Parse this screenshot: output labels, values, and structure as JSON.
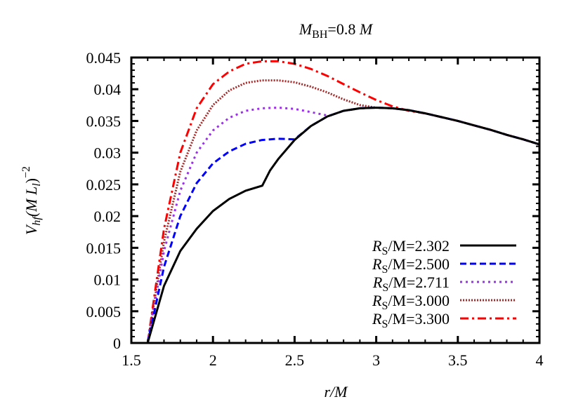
{
  "chart_data": {
    "type": "line",
    "title": "M_BH=0.8 M",
    "title_parts": {
      "main": "M",
      "sub": "BH",
      "rest": "=0.8 ",
      "unit": "M"
    },
    "xlabel": "r/M",
    "ylabel": "V_hf (M L_l)^-2",
    "ylabel_parts": {
      "v": "V",
      "vsub": "hf",
      "mid": "(M L",
      "lsub": "l",
      "close": ")",
      "sup": "−2"
    },
    "xlim": [
      1.5,
      4
    ],
    "ylim": [
      0,
      0.045
    ],
    "xticks": [
      "1.5",
      "2",
      "2.5",
      "3",
      "3.5",
      "4"
    ],
    "yticks": [
      "0",
      "0.005",
      "0.01",
      "0.015",
      "0.02",
      "0.025",
      "0.03",
      "0.035",
      "0.04",
      "0.045"
    ],
    "grid": false,
    "legend_position": "bottom-right",
    "series": [
      {
        "name": "R_S/M=2.302",
        "label_main": "R",
        "label_sub": "S",
        "label_rest": "/M=2.302",
        "color": "#000000",
        "style": "solid",
        "x": [
          1.6,
          1.7,
          1.8,
          1.9,
          2.0,
          2.1,
          2.2,
          2.302,
          2.35,
          2.4,
          2.5,
          2.6,
          2.7,
          2.8,
          2.9,
          3.0,
          3.1,
          3.2,
          3.3,
          3.4,
          3.5,
          3.6,
          3.7,
          3.8,
          3.9,
          4.0
        ],
        "y": [
          0,
          0.009,
          0.0145,
          0.018,
          0.0208,
          0.0227,
          0.024,
          0.0248,
          0.0272,
          0.029,
          0.032,
          0.0342,
          0.0357,
          0.0366,
          0.037,
          0.0371,
          0.037,
          0.0367,
          0.0362,
          0.0356,
          0.035,
          0.0343,
          0.0336,
          0.0328,
          0.0321,
          0.0313
        ]
      },
      {
        "name": "R_S/M=2.500",
        "label_main": "R",
        "label_sub": "S",
        "label_rest": "/M=2.500",
        "color": "#0000ff",
        "style": "dashed",
        "x": [
          1.6,
          1.7,
          1.8,
          1.9,
          2.0,
          2.1,
          2.2,
          2.3,
          2.4,
          2.5,
          2.6,
          2.7,
          2.8,
          2.9,
          3.0,
          3.1,
          3.2,
          3.3,
          3.4,
          3.5,
          3.6,
          3.7,
          3.8,
          3.9,
          4.0
        ],
        "y": [
          0,
          0.012,
          0.02,
          0.0252,
          0.0283,
          0.0302,
          0.0314,
          0.032,
          0.0322,
          0.0321,
          0.0342,
          0.0357,
          0.0366,
          0.037,
          0.0371,
          0.037,
          0.0367,
          0.0362,
          0.0356,
          0.035,
          0.0343,
          0.0336,
          0.0328,
          0.0321,
          0.0313
        ]
      },
      {
        "name": "R_S/M=2.711",
        "label_main": "R",
        "label_sub": "S",
        "label_rest": "/M=2.711",
        "color": "#9a30e8",
        "style": "dotted",
        "x": [
          1.6,
          1.7,
          1.8,
          1.9,
          2.0,
          2.1,
          2.2,
          2.3,
          2.4,
          2.5,
          2.6,
          2.711,
          2.8,
          2.9,
          3.0,
          3.1,
          3.2,
          3.3,
          3.4,
          3.5,
          3.6,
          3.7,
          3.8,
          3.9,
          4.0
        ],
        "y": [
          0,
          0.0145,
          0.024,
          0.03,
          0.0335,
          0.0355,
          0.0366,
          0.037,
          0.0371,
          0.0369,
          0.0364,
          0.0358,
          0.0366,
          0.037,
          0.0371,
          0.037,
          0.0367,
          0.0362,
          0.0356,
          0.035,
          0.0343,
          0.0336,
          0.0328,
          0.0321,
          0.0313
        ]
      },
      {
        "name": "R_S/M=3.000",
        "label_main": "R",
        "label_sub": "S",
        "label_rest": "/M=3.000",
        "color": "#a52a2a",
        "style": "fine-dotted",
        "x": [
          1.6,
          1.7,
          1.8,
          1.9,
          2.0,
          2.1,
          2.2,
          2.3,
          2.4,
          2.5,
          2.6,
          2.7,
          2.8,
          2.9,
          3.0,
          3.1,
          3.2,
          3.3,
          3.4,
          3.5,
          3.6,
          3.7,
          3.8,
          3.9,
          4.0
        ],
        "y": [
          0,
          0.016,
          0.027,
          0.0335,
          0.0375,
          0.0398,
          0.041,
          0.0414,
          0.0414,
          0.0411,
          0.0404,
          0.0395,
          0.0384,
          0.0375,
          0.0371,
          0.037,
          0.0367,
          0.0362,
          0.0356,
          0.035,
          0.0343,
          0.0336,
          0.0328,
          0.0321,
          0.0313
        ]
      },
      {
        "name": "R_S/M=3.300",
        "label_main": "R",
        "label_sub": "S",
        "label_rest": "/M=3.300",
        "color": "#ff0000",
        "style": "dash-dot",
        "x": [
          1.6,
          1.7,
          1.8,
          1.9,
          2.0,
          2.1,
          2.2,
          2.3,
          2.4,
          2.5,
          2.6,
          2.7,
          2.8,
          2.9,
          3.0,
          3.1,
          3.2,
          3.3,
          3.4,
          3.5,
          3.6,
          3.7,
          3.8,
          3.9,
          4.0
        ],
        "y": [
          0,
          0.018,
          0.03,
          0.037,
          0.0408,
          0.0428,
          0.044,
          0.0444,
          0.0444,
          0.044,
          0.0432,
          0.0421,
          0.0408,
          0.0395,
          0.0383,
          0.0373,
          0.0366,
          0.0362,
          0.0356,
          0.035,
          0.0343,
          0.0336,
          0.0328,
          0.0321,
          0.0313
        ]
      }
    ]
  }
}
